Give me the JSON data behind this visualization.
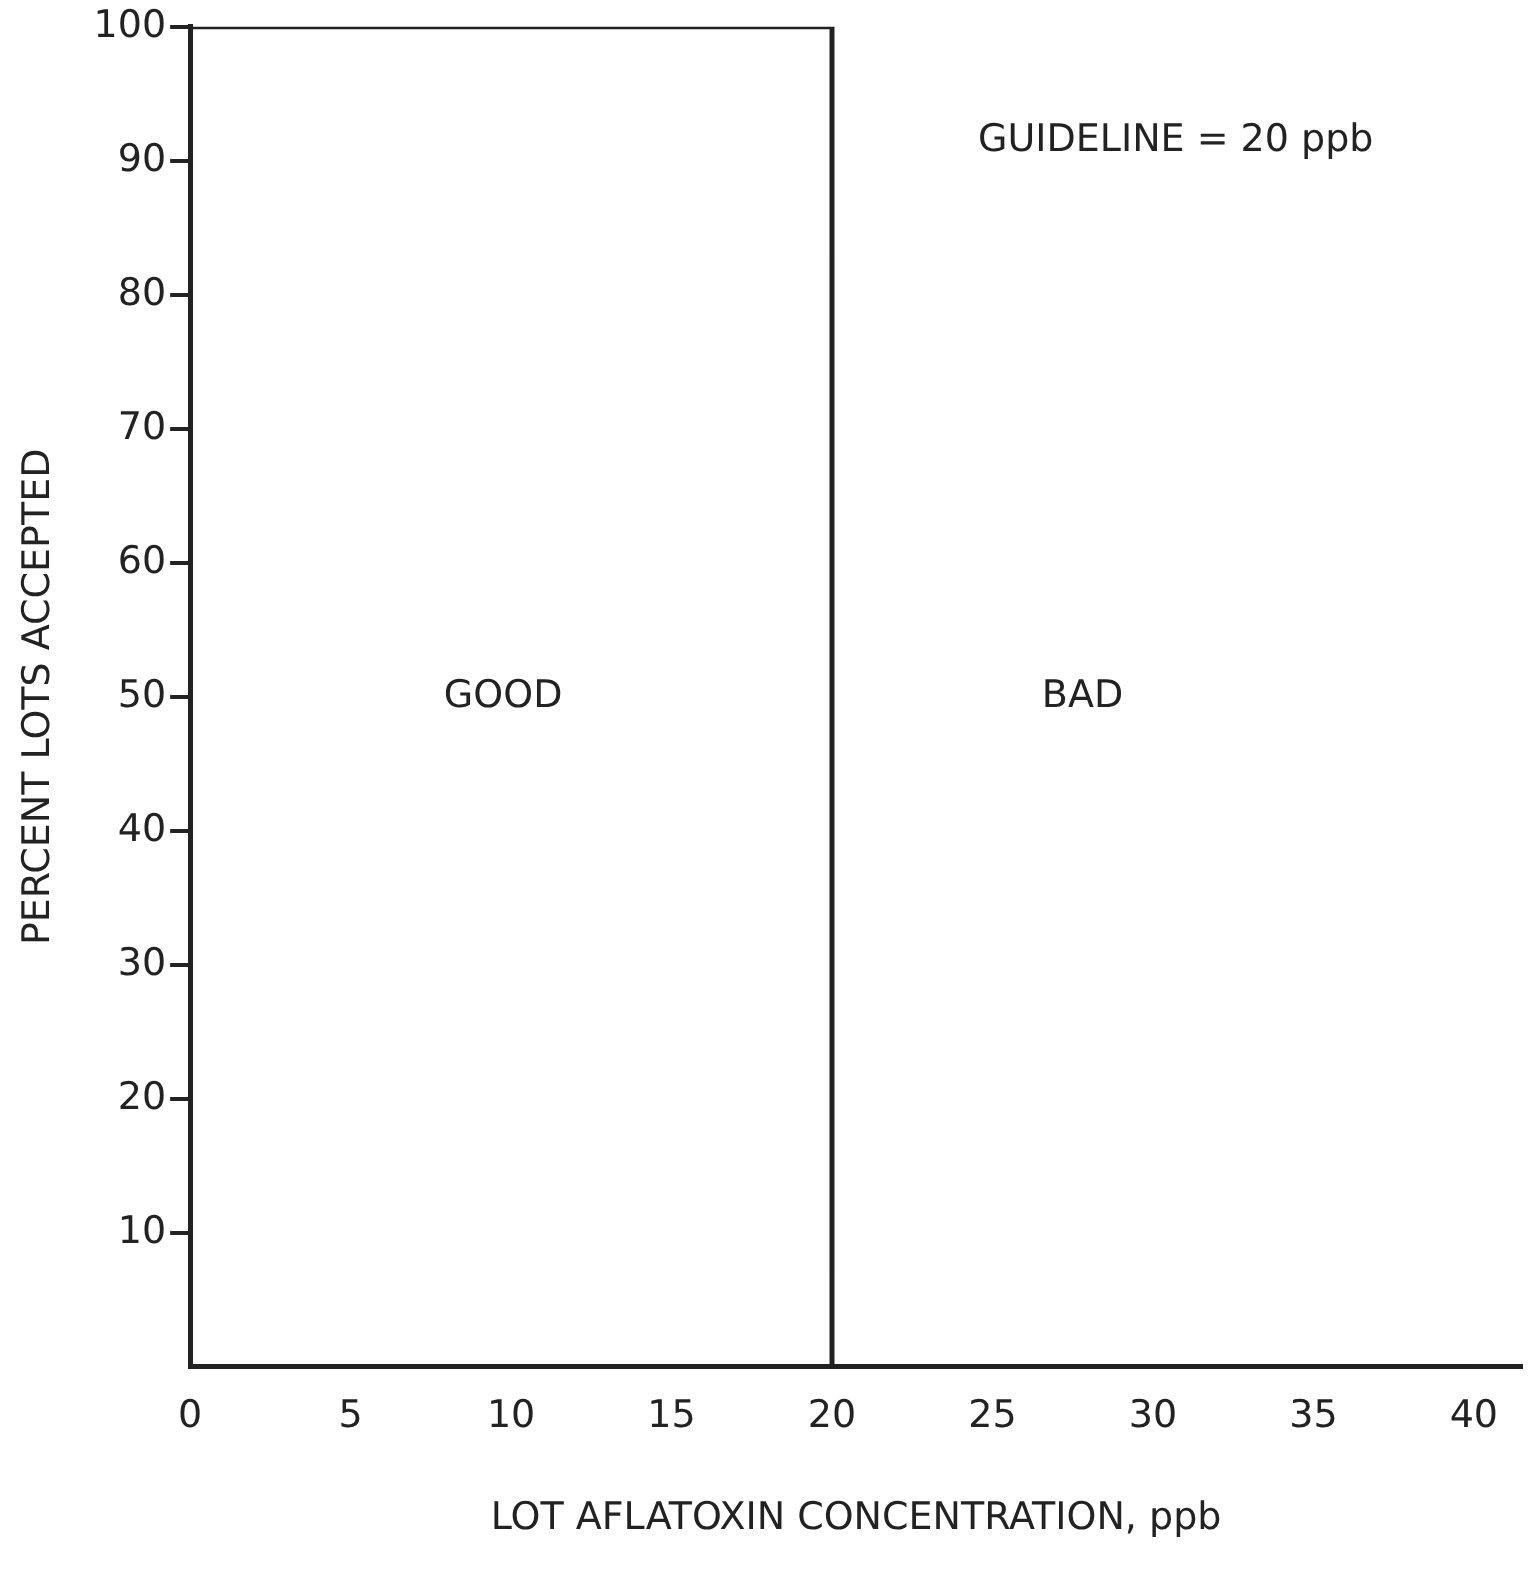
{
  "chart_data": {
    "type": "line",
    "xlabel": "LOT AFLATOXIN CONCENTRATION, ppb",
    "ylabel": "PERCENT LOTS ACCEPTED",
    "x": [
      0,
      20,
      20,
      40
    ],
    "series": [
      {
        "color": "#222222",
        "values": [
          100,
          100,
          0,
          0
        ]
      }
    ],
    "xlim": [
      0,
      41.5
    ],
    "xticks": [
      0,
      5,
      10,
      15,
      20,
      25,
      30,
      35,
      40
    ],
    "ylim": [
      0,
      100
    ],
    "yticks": [
      10,
      20,
      30,
      40,
      50,
      60,
      70,
      80,
      90,
      100
    ],
    "marker": "none",
    "line_style": "solid",
    "grid": false,
    "annotations": [
      "GUIDELINE = 20 ppb",
      "GOOD",
      "BAD"
    ]
  }
}
